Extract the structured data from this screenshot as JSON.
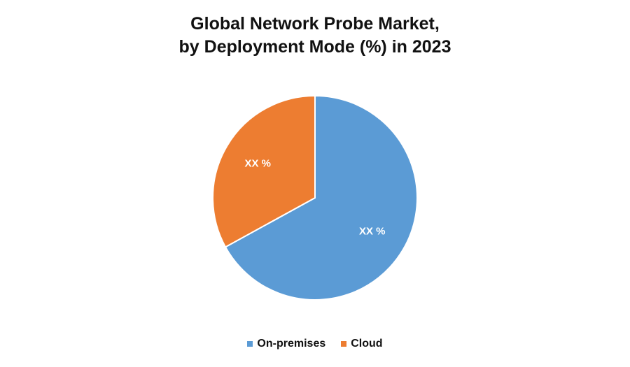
{
  "chart_data": {
    "type": "pie",
    "title_lines": [
      "Global Network Probe Market,",
      "by Deployment Mode (%) in 2023"
    ],
    "slices": [
      {
        "name": "On-premises",
        "value": 67,
        "label": "XX %",
        "color": "#5b9bd5"
      },
      {
        "name": "Cloud",
        "value": 33,
        "label": "XX %",
        "color": "#ed7d31"
      }
    ],
    "start_angle_deg": 0,
    "direction": "clockwise",
    "legend_position": "bottom"
  }
}
